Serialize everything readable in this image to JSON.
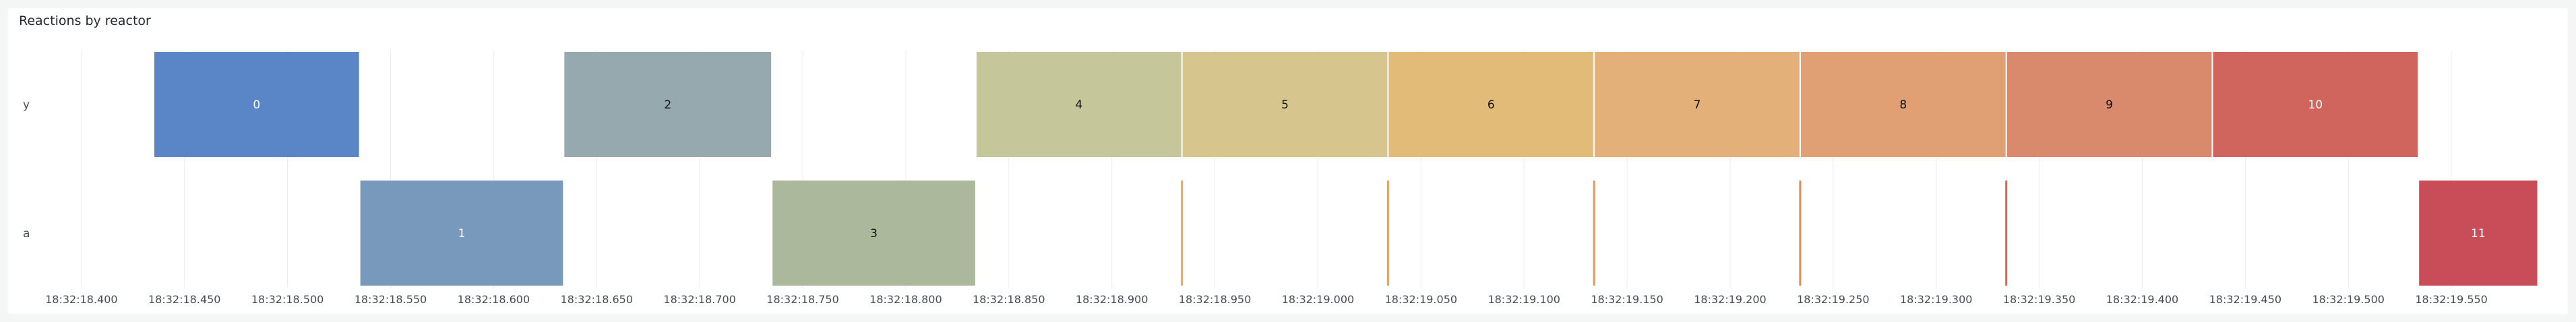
{
  "panel": {
    "title": "Reactions by reactor"
  },
  "chart_data": {
    "type": "timeline",
    "rows": [
      "y",
      "a"
    ],
    "x_ticks": [
      "18:32:18.400",
      "18:32:18.450",
      "18:32:18.500",
      "18:32:18.550",
      "18:32:18.600",
      "18:32:18.650",
      "18:32:18.700",
      "18:32:18.750",
      "18:32:18.800",
      "18:32:18.850",
      "18:32:18.900",
      "18:32:18.950",
      "18:32:19.000",
      "18:32:19.050",
      "18:32:19.100",
      "18:32:19.150",
      "18:32:19.200",
      "18:32:19.250",
      "18:32:19.300",
      "18:32:19.350",
      "18:32:19.400",
      "18:32:19.450",
      "18:32:19.500",
      "18:32:19.550"
    ],
    "x_range": [
      "18:32:18.385",
      "18:32:19.600"
    ],
    "grid": true,
    "legend": "none",
    "bars": [
      {
        "row": "y",
        "label": "0",
        "start": "18:32:18.435",
        "end": "18:32:18.535",
        "color": "#5a86c8",
        "text_color": "#ffffff"
      },
      {
        "row": "a",
        "label": "1",
        "start": "18:32:18.535",
        "end": "18:32:18.634",
        "color": "#7999bc",
        "text_color": "#ffffff"
      },
      {
        "row": "y",
        "label": "2",
        "start": "18:32:18.634",
        "end": "18:32:18.735",
        "color": "#95a9ae",
        "text_color": "#111111"
      },
      {
        "row": "a",
        "label": "3",
        "start": "18:32:18.735",
        "end": "18:32:18.834",
        "color": "#abb89c",
        "text_color": "#111111"
      },
      {
        "row": "y",
        "label": "4",
        "start": "18:32:18.834",
        "end": "18:32:18.934",
        "color": "#c5c699",
        "text_color": "#111111"
      },
      {
        "row": "y",
        "label": "5",
        "start": "18:32:18.934",
        "end": "18:32:19.034",
        "color": "#d6c68d",
        "text_color": "#111111"
      },
      {
        "row": "y",
        "label": "6",
        "start": "18:32:19.034",
        "end": "18:32:19.134",
        "color": "#e2bb79",
        "text_color": "#111111"
      },
      {
        "row": "y",
        "label": "7",
        "start": "18:32:19.134",
        "end": "18:32:19.234",
        "color": "#e4b07a",
        "text_color": "#111111"
      },
      {
        "row": "y",
        "label": "8",
        "start": "18:32:19.234",
        "end": "18:32:19.334",
        "color": "#e0a074",
        "text_color": "#111111"
      },
      {
        "row": "y",
        "label": "9",
        "start": "18:32:19.334",
        "end": "18:32:19.434",
        "color": "#d9896c",
        "text_color": "#111111"
      },
      {
        "row": "y",
        "label": "10",
        "start": "18:32:19.434",
        "end": "18:32:19.534",
        "color": "#d0655e",
        "text_color": "#ffffff"
      },
      {
        "row": "a",
        "label": "11",
        "start": "18:32:19.534",
        "end": "18:32:19.592",
        "color": "#c84d59",
        "text_color": "#ffffff"
      }
    ],
    "markers": [
      {
        "row": "a",
        "at": "18:32:18.934",
        "color": "#d9ae6e"
      },
      {
        "row": "a",
        "at": "18:32:19.034",
        "color": "#e0a45e"
      },
      {
        "row": "a",
        "at": "18:32:19.134",
        "color": "#e09a5e"
      },
      {
        "row": "a",
        "at": "18:32:19.234",
        "color": "#dd8c5c"
      },
      {
        "row": "a",
        "at": "18:32:19.334",
        "color": "#d26a55"
      }
    ]
  }
}
